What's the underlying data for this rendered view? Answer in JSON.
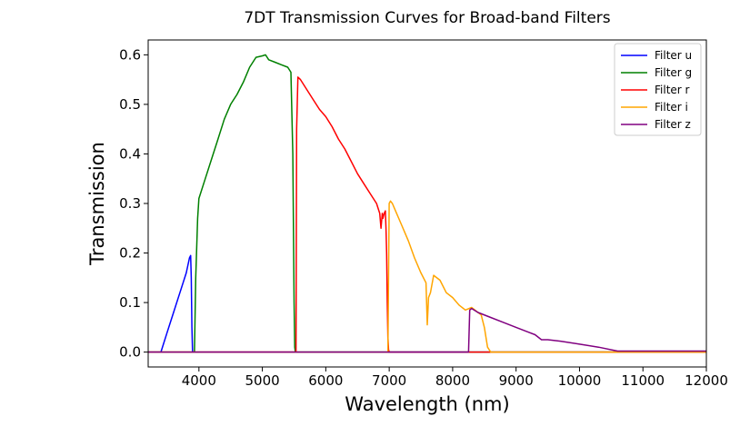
{
  "chart_data": {
    "type": "line",
    "title": "7DT Transmission Curves for Broad-band Filters",
    "xlabel": "Wavelength (nm)",
    "ylabel": "Transmission",
    "xlim": [
      3200,
      12000
    ],
    "ylim": [
      -0.03,
      0.63
    ],
    "xticks": [
      4000,
      5000,
      6000,
      7000,
      8000,
      9000,
      10000,
      11000,
      12000
    ],
    "yticks": [
      0.0,
      0.1,
      0.2,
      0.3,
      0.4,
      0.5,
      0.6
    ],
    "ytick_labels": [
      "0.0",
      "0.1",
      "0.2",
      "0.3",
      "0.4",
      "0.5",
      "0.6"
    ],
    "grid": false,
    "legend_position": "top-right",
    "series": [
      {
        "name": "Filter u",
        "color": "#0000ff",
        "x": [
          3000,
          3400,
          3500,
          3600,
          3700,
          3800,
          3850,
          3870,
          3880,
          3890,
          3900,
          12000
        ],
        "y": [
          0.0,
          0.0,
          0.04,
          0.08,
          0.12,
          0.16,
          0.19,
          0.195,
          0.15,
          0.05,
          0.0,
          0.0
        ]
      },
      {
        "name": "Filter g",
        "color": "#008000",
        "x": [
          3000,
          3930,
          3950,
          3980,
          4000,
          4100,
          4200,
          4300,
          4400,
          4500,
          4600,
          4700,
          4800,
          4900,
          5000,
          5050,
          5100,
          5200,
          5300,
          5400,
          5450,
          5480,
          5500,
          5510,
          5520,
          12000
        ],
        "y": [
          0.0,
          0.0,
          0.15,
          0.27,
          0.31,
          0.35,
          0.39,
          0.43,
          0.47,
          0.5,
          0.52,
          0.545,
          0.575,
          0.595,
          0.598,
          0.6,
          0.59,
          0.585,
          0.58,
          0.575,
          0.565,
          0.4,
          0.1,
          0.01,
          0.0,
          0.0
        ]
      },
      {
        "name": "Filter r",
        "color": "#ff0000",
        "x": [
          3000,
          5530,
          5540,
          5560,
          5600,
          5700,
          5800,
          5900,
          6000,
          6100,
          6200,
          6300,
          6400,
          6500,
          6600,
          6700,
          6800,
          6850,
          6870,
          6890,
          6900,
          6920,
          6940,
          6950,
          6960,
          6970,
          6980,
          6990,
          7000,
          12000
        ],
        "y": [
          0.0,
          0.0,
          0.45,
          0.555,
          0.55,
          0.53,
          0.51,
          0.49,
          0.475,
          0.455,
          0.43,
          0.41,
          0.385,
          0.36,
          0.34,
          0.32,
          0.3,
          0.28,
          0.25,
          0.28,
          0.27,
          0.28,
          0.285,
          0.25,
          0.2,
          0.1,
          0.03,
          0.005,
          0.0,
          0.0
        ]
      },
      {
        "name": "Filter i",
        "color": "#ffa500",
        "x": [
          3000,
          6980,
          7000,
          7020,
          7050,
          7100,
          7200,
          7300,
          7400,
          7500,
          7580,
          7600,
          7620,
          7650,
          7700,
          7800,
          7900,
          8000,
          8100,
          8200,
          8300,
          8400,
          8450,
          8500,
          8550,
          8600,
          12000
        ],
        "y": [
          0.0,
          0.0,
          0.3,
          0.305,
          0.3,
          0.285,
          0.255,
          0.225,
          0.19,
          0.16,
          0.14,
          0.055,
          0.11,
          0.12,
          0.155,
          0.145,
          0.12,
          0.11,
          0.095,
          0.085,
          0.09,
          0.08,
          0.075,
          0.05,
          0.01,
          0.0,
          0.0
        ]
      },
      {
        "name": "Filter z",
        "color": "#800080",
        "x": [
          3000,
          8250,
          8270,
          8300,
          8400,
          8600,
          8800,
          9000,
          9200,
          9300,
          9400,
          9500,
          9700,
          10000,
          10300,
          10600,
          10700,
          11000,
          11500,
          12000
        ],
        "y": [
          0.0,
          0.0,
          0.085,
          0.088,
          0.08,
          0.07,
          0.06,
          0.05,
          0.04,
          0.035,
          0.025,
          0.025,
          0.022,
          0.016,
          0.01,
          0.002,
          0.002,
          0.002,
          0.002,
          0.002
        ]
      }
    ]
  }
}
